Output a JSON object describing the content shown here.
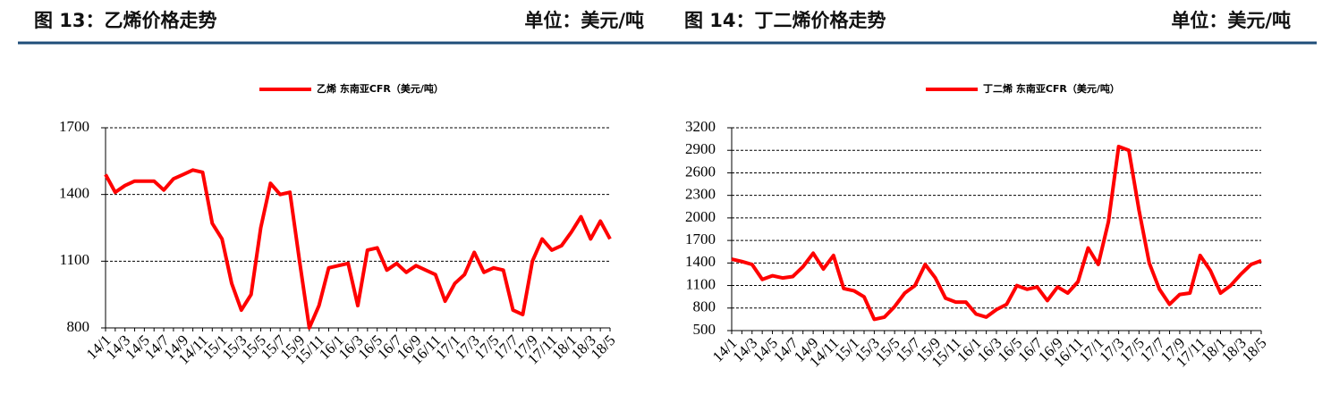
{
  "chart_data": [
    {
      "type": "line",
      "title": "图 13：乙烯价格走势",
      "unit": "单位：美元/吨",
      "categories": [
        "14/1",
        null,
        "14/3",
        null,
        "14/5",
        null,
        "14/7",
        null,
        "14/9",
        null,
        "14/11",
        null,
        "15/1",
        null,
        "15/3",
        null,
        "15/5",
        null,
        "15/7",
        null,
        "15/9",
        null,
        "15/11",
        null,
        "16/1",
        null,
        "16/3",
        null,
        "16/5",
        null,
        "16/7",
        null,
        "16/9",
        null,
        "16/11",
        null,
        "17/1",
        null,
        "17/3",
        null,
        "17/5",
        null,
        "17/7",
        null,
        "17/9",
        null,
        "17/11",
        null,
        "18/1",
        null,
        "18/3",
        null,
        "18/5"
      ],
      "series": [
        {
          "name": "乙烯 东南亚CFR（美元/吨）",
          "color": "#ff0000",
          "values": [
            1490,
            1410,
            1440,
            1460,
            1460,
            1460,
            1420,
            1470,
            1490,
            1510,
            1500,
            1270,
            1200,
            1000,
            880,
            950,
            1250,
            1450,
            1400,
            1410,
            1100,
            800,
            900,
            1070,
            1080,
            1090,
            900,
            1150,
            1160,
            1060,
            1090,
            1050,
            1080,
            1060,
            1040,
            920,
            1000,
            1040,
            1140,
            1050,
            1070,
            1060,
            880,
            860,
            1100,
            1200,
            1150,
            1170,
            1230,
            1300,
            1200,
            1280,
            1200
          ]
        }
      ],
      "ylim": [
        800,
        1700
      ],
      "yticks": [
        800,
        1100,
        1400,
        1700
      ],
      "grid": true
    },
    {
      "type": "line",
      "title": "图 14：丁二烯价格走势",
      "unit": "单位：美元/吨",
      "categories": [
        "14/1",
        null,
        "14/3",
        null,
        "14/5",
        null,
        "14/7",
        null,
        "14/9",
        null,
        "14/11",
        null,
        "15/1",
        null,
        "15/3",
        null,
        "15/5",
        null,
        "15/7",
        null,
        "15/9",
        null,
        "15/11",
        null,
        "16/1",
        null,
        "16/3",
        null,
        "16/5",
        null,
        "16/7",
        null,
        "16/9",
        null,
        "16/11",
        null,
        "17/1",
        null,
        "17/3",
        null,
        "17/5",
        null,
        "17/7",
        null,
        "17/9",
        null,
        "17/11",
        null,
        "18/1",
        null,
        "18/3",
        null,
        "18/5"
      ],
      "series": [
        {
          "name": "丁二烯 东南亚CFR（美元/吨）",
          "color": "#ff0000",
          "values": [
            1450,
            1420,
            1380,
            1180,
            1230,
            1200,
            1220,
            1350,
            1530,
            1320,
            1500,
            1060,
            1030,
            950,
            650,
            680,
            820,
            1000,
            1100,
            1380,
            1200,
            930,
            880,
            880,
            720,
            680,
            780,
            850,
            1100,
            1050,
            1080,
            900,
            1080,
            1000,
            1150,
            1600,
            1380,
            1950,
            2950,
            2900,
            2100,
            1400,
            1050,
            850,
            980,
            1000,
            1500,
            1300,
            1000,
            1100,
            1250,
            1380,
            1430
          ]
        }
      ],
      "ylim": [
        500,
        3200
      ],
      "yticks": [
        500,
        800,
        1100,
        1400,
        1700,
        2000,
        2300,
        2600,
        2900,
        3200
      ],
      "grid": true
    }
  ]
}
